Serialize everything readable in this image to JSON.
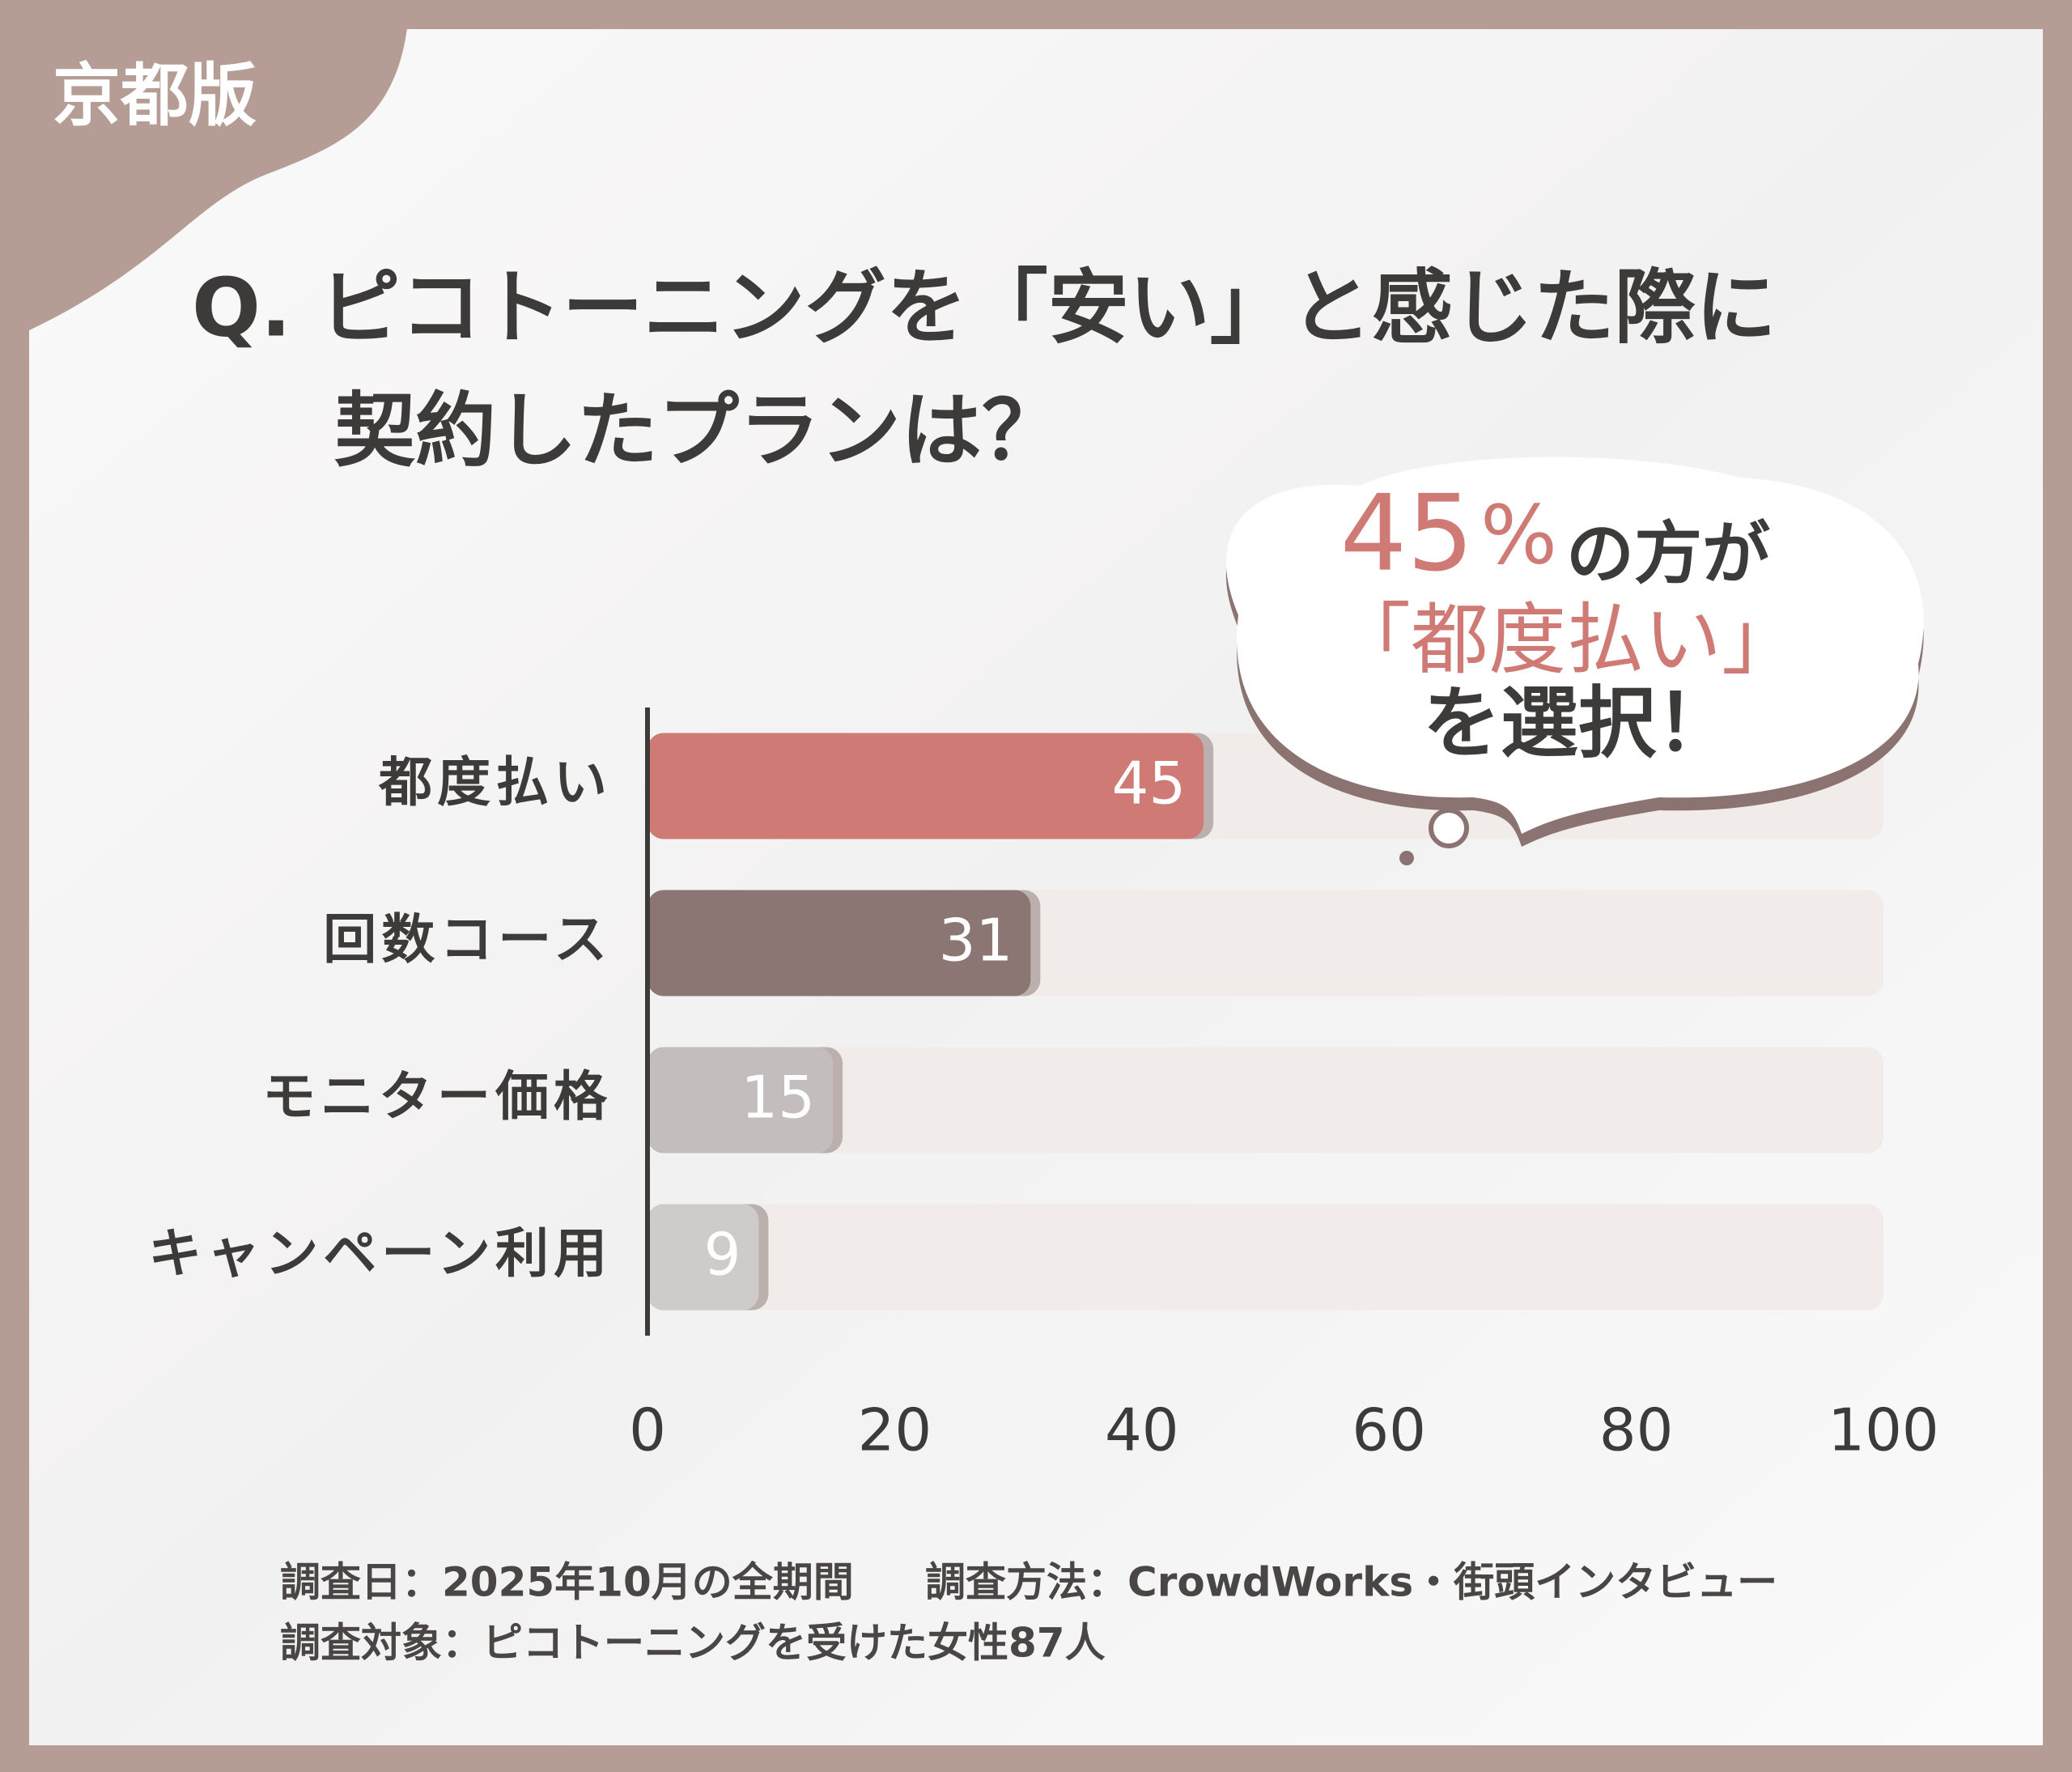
{
  "badge": "京都版",
  "chart_data": {
    "type": "bar",
    "orientation": "horizontal",
    "title_lines": [
      "Q. ピコトーニングを「安い」と感じた際に",
      "契約したプランは？"
    ],
    "categories": [
      "都度払い",
      "回数コース",
      "モニター価格",
      "キャンペーン利用"
    ],
    "values": [
      45,
      31,
      15,
      9
    ],
    "colors": [
      "#d07a75",
      "#8c7673",
      "#c3bebd",
      "#cfcbca"
    ],
    "track_color": "#f1ecea",
    "xlim": [
      0,
      100
    ],
    "xticks": [
      0,
      20,
      40,
      60,
      80,
      100
    ],
    "grid": false,
    "callout": {
      "number": "45",
      "unit": "%",
      "text1": "の方が",
      "text2": "「都度払い」",
      "text3": "を選択！"
    }
  },
  "footer": {
    "date": "調査日：2025年10月の全期間",
    "method": "調査方法：CrowdWorks・街頭インタビュー",
    "target": "調査対象：ピコトーニングを受けた女性87人"
  }
}
